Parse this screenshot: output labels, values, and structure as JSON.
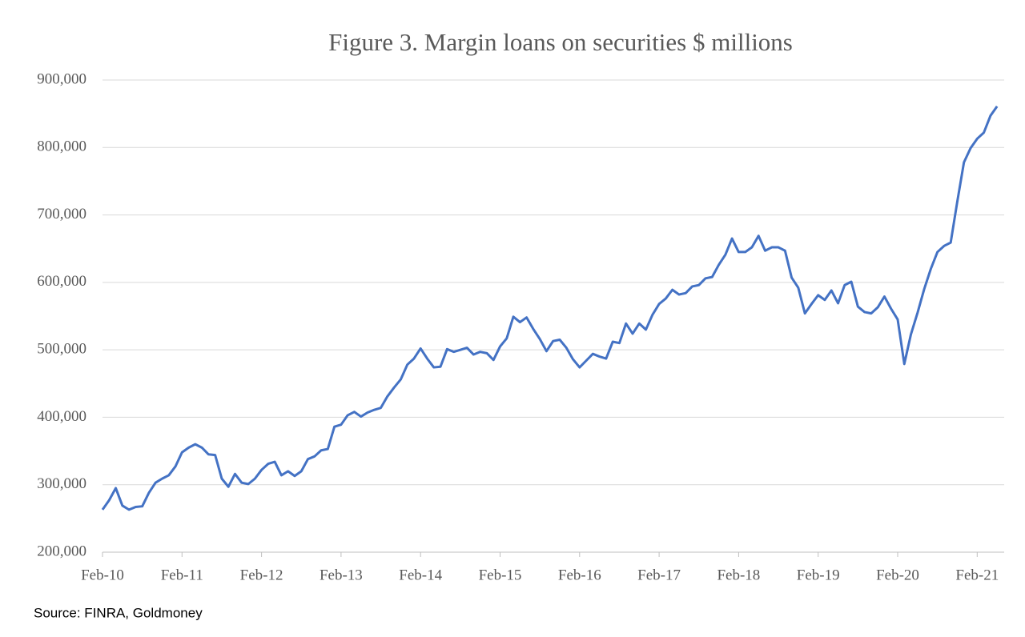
{
  "chart_data": {
    "type": "line",
    "title": "Figure 3. Margin loans on securities $ millions",
    "source": "Source: FINRA, Goldmoney",
    "categories": [
      "Feb-10",
      null,
      null,
      null,
      null,
      null,
      null,
      null,
      null,
      null,
      null,
      null,
      "Feb-11",
      null,
      null,
      null,
      null,
      null,
      null,
      null,
      null,
      null,
      null,
      null,
      "Feb-12",
      null,
      null,
      null,
      null,
      null,
      null,
      null,
      null,
      null,
      null,
      null,
      "Feb-13",
      null,
      null,
      null,
      null,
      null,
      null,
      null,
      null,
      null,
      null,
      null,
      "Feb-14",
      null,
      null,
      null,
      null,
      null,
      null,
      null,
      null,
      null,
      null,
      null,
      "Feb-15",
      null,
      null,
      null,
      null,
      null,
      null,
      null,
      null,
      null,
      null,
      null,
      "Feb-16",
      null,
      null,
      null,
      null,
      null,
      null,
      null,
      null,
      null,
      null,
      null,
      "Feb-17",
      null,
      null,
      null,
      null,
      null,
      null,
      null,
      null,
      null,
      null,
      null,
      "Feb-18",
      null,
      null,
      null,
      null,
      null,
      null,
      null,
      null,
      null,
      null,
      null,
      "Feb-19",
      null,
      null,
      null,
      null,
      null,
      null,
      null,
      null,
      null,
      null,
      null,
      "Feb-20",
      null,
      null,
      null,
      null,
      null,
      null,
      null,
      null,
      null,
      null,
      null,
      "Feb-21",
      null,
      null,
      null
    ],
    "series": [
      {
        "color": "#4472c4",
        "values": [
          263000,
          277000,
          295000,
          269000,
          263000,
          267000,
          268000,
          288000,
          303000,
          309000,
          314000,
          327000,
          348000,
          355000,
          360000,
          355000,
          345000,
          344000,
          309000,
          297000,
          316000,
          303000,
          301000,
          309000,
          322000,
          331000,
          334000,
          314000,
          320000,
          313000,
          320000,
          338000,
          342000,
          351000,
          353000,
          386000,
          389000,
          403000,
          408000,
          401000,
          407000,
          411000,
          414000,
          431000,
          444000,
          456000,
          478000,
          487000,
          502000,
          487000,
          474000,
          475000,
          501000,
          497000,
          500000,
          503000,
          493000,
          497000,
          495000,
          485000,
          505000,
          517000,
          549000,
          541000,
          548000,
          531000,
          516000,
          498000,
          513000,
          515000,
          503000,
          486000,
          474000,
          484000,
          494000,
          490000,
          487000,
          512000,
          510000,
          539000,
          524000,
          539000,
          530000,
          552000,
          568000,
          576000,
          589000,
          582000,
          584000,
          594000,
          596000,
          606000,
          608000,
          626000,
          641000,
          665000,
          645000,
          645000,
          652000,
          669000,
          647000,
          652000,
          652000,
          647000,
          607000,
          592000,
          554000,
          568000,
          581000,
          574000,
          588000,
          569000,
          596000,
          601000,
          564000,
          556000,
          554000,
          563000,
          579000,
          561000,
          545000,
          479000,
          523000,
          555000,
          590000,
          620000,
          645000,
          654000,
          659000,
          720000,
          778000,
          799000,
          813000,
          822000,
          847000,
          861000
        ]
      }
    ],
    "ylim": [
      200000,
      900000
    ],
    "yticks": [
      {
        "value": 200000,
        "label": "200,000"
      },
      {
        "value": 300000,
        "label": "300,000"
      },
      {
        "value": 400000,
        "label": "400,000"
      },
      {
        "value": 500000,
        "label": "500,000"
      },
      {
        "value": 600000,
        "label": "600,000"
      },
      {
        "value": 700000,
        "label": "700,000"
      },
      {
        "value": 800000,
        "label": "800,000"
      },
      {
        "value": 900000,
        "label": "900,000"
      }
    ],
    "grid": true
  }
}
